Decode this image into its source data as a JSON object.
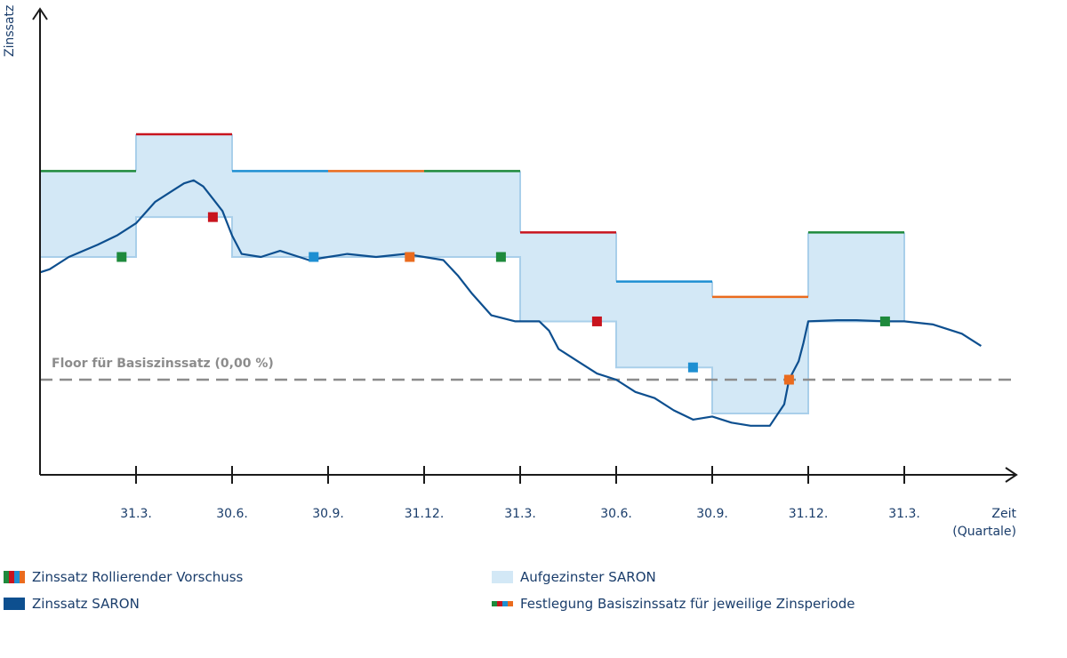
{
  "chart_data": {
    "type": "line",
    "title": "",
    "ylabel": "Zinssatz",
    "xlabel": "Zeit",
    "xlabel_sub": "(Quartale)",
    "categories": [
      "31.3.",
      "30.6.",
      "30.9.",
      "31.12.",
      "31.3.",
      "30.6.",
      "30.9.",
      "31.12.",
      "31.3."
    ],
    "y_ticks_shown": false,
    "floor": {
      "label": "Floor für Basiszinssatz (0,00 %)",
      "value": 0
    },
    "colors": {
      "green": "#1e8a3c",
      "red": "#c8141e",
      "blue": "#1e8fd2",
      "orange": "#ea6b1e",
      "saron": "#0d4f8f",
      "band": "#d3e8f6",
      "band_edge": "#a9cfea",
      "floor": "#8c8c8c",
      "axis": "#1a1a1a",
      "text": "#1a3d6b"
    },
    "rollierender_vorschuss": [
      {
        "x0": 0,
        "x1": 1,
        "y": 3.4,
        "color": "green"
      },
      {
        "x0": 1,
        "x1": 2,
        "y": 4.0,
        "color": "red"
      },
      {
        "x0": 2,
        "x1": 3,
        "y": 3.4,
        "color": "blue"
      },
      {
        "x0": 3,
        "x1": 4,
        "y": 3.4,
        "color": "orange"
      },
      {
        "x0": 4,
        "x1": 5,
        "y": 3.4,
        "color": "green"
      },
      {
        "x0": 5,
        "x1": 6,
        "y": 2.4,
        "color": "red"
      },
      {
        "x0": 6,
        "x1": 7,
        "y": 1.6,
        "color": "blue"
      },
      {
        "x0": 7,
        "x1": 8,
        "y": 1.35,
        "color": "orange"
      },
      {
        "x0": 8,
        "x1": 9,
        "y": 2.4,
        "color": "green"
      }
    ],
    "aufgezinster_saron_lower": [
      {
        "x0": 0,
        "x1": 1,
        "y": 2.0
      },
      {
        "x0": 1,
        "x1": 2,
        "y": 2.65
      },
      {
        "x0": 2,
        "x1": 3,
        "y": 2.0
      },
      {
        "x0": 3,
        "x1": 4,
        "y": 2.0
      },
      {
        "x0": 4,
        "x1": 5,
        "y": 2.0
      },
      {
        "x0": 5,
        "x1": 6,
        "y": 0.95
      },
      {
        "x0": 6,
        "x1": 7,
        "y": 0.2
      },
      {
        "x0": 7,
        "x1": 8,
        "y": -0.55
      },
      {
        "x0": 8,
        "x1": 9,
        "y": 0.95
      }
    ],
    "saron": {
      "x": [
        0,
        0.1,
        0.3,
        0.6,
        0.8,
        1.0,
        1.2,
        1.4,
        1.5,
        1.6,
        1.7,
        1.8,
        1.9,
        2.0,
        2.1,
        2.3,
        2.5,
        2.8,
        3.0,
        3.2,
        3.5,
        3.8,
        4.0,
        4.2,
        4.35,
        4.5,
        4.7,
        4.95,
        5.2,
        5.3,
        5.4,
        5.6,
        5.8,
        6.0,
        6.2,
        6.4,
        6.6,
        6.8,
        7.0,
        7.2,
        7.4,
        7.6,
        7.75,
        7.8,
        7.9,
        7.95,
        8.0,
        8.3,
        8.5,
        8.8,
        9.0,
        9.3,
        9.6,
        9.8
      ],
      "y": [
        1.75,
        1.8,
        2.0,
        2.2,
        2.35,
        2.55,
        2.9,
        3.1,
        3.2,
        3.25,
        3.15,
        2.95,
        2.75,
        2.35,
        2.05,
        2.0,
        2.1,
        1.95,
        2.0,
        2.05,
        2.0,
        2.05,
        2.0,
        1.95,
        1.7,
        1.4,
        1.05,
        0.95,
        0.95,
        0.8,
        0.5,
        0.3,
        0.1,
        0.0,
        -0.2,
        -0.3,
        -0.5,
        -0.65,
        -0.6,
        -0.7,
        -0.75,
        -0.75,
        -0.4,
        0.0,
        0.3,
        0.6,
        0.95,
        0.97,
        0.97,
        0.95,
        0.95,
        0.9,
        0.75,
        0.55
      ]
    },
    "festlegung_markers": [
      {
        "x": 0.85,
        "y": 2.0,
        "color": "green"
      },
      {
        "x": 1.8,
        "y": 2.65,
        "color": "red"
      },
      {
        "x": 2.85,
        "y": 2.0,
        "color": "blue"
      },
      {
        "x": 3.85,
        "y": 2.0,
        "color": "orange"
      },
      {
        "x": 4.8,
        "y": 2.0,
        "color": "green"
      },
      {
        "x": 5.8,
        "y": 0.95,
        "color": "red"
      },
      {
        "x": 6.8,
        "y": 0.2,
        "color": "blue"
      },
      {
        "x": 7.8,
        "y": 0.0,
        "color": "orange"
      },
      {
        "x": 8.8,
        "y": 0.95,
        "color": "green"
      }
    ],
    "legend": [
      {
        "label": "Zinssatz Rollierender Vorschuss",
        "swatch": "multi-bar"
      },
      {
        "label": "Zinssatz SARON",
        "swatch": "bar"
      },
      {
        "label": "Aufgezinster SARON",
        "swatch": "area"
      },
      {
        "label": "Festlegung Basiszinssatz für jeweilige Zinsperiode",
        "swatch": "multi-square"
      }
    ]
  }
}
